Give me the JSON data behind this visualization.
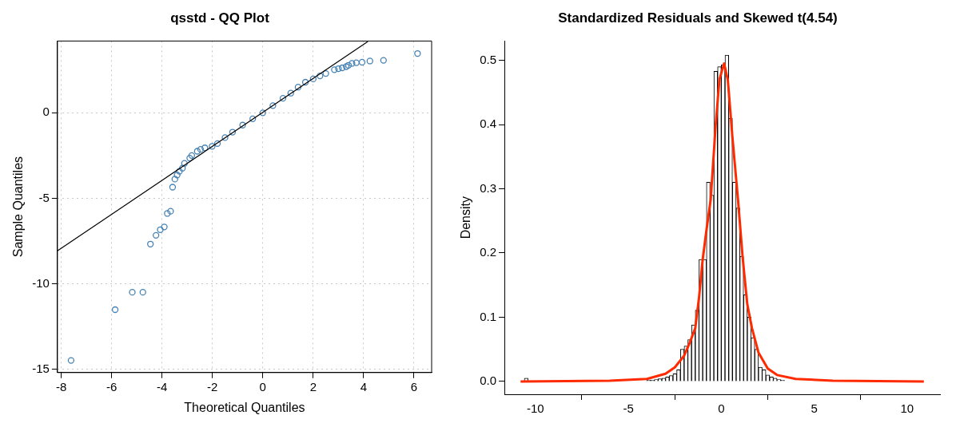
{
  "chart_data": [
    {
      "type": "scatter",
      "title": "qsstd - QQ Plot",
      "xlabel": "Theoretical Quantiles",
      "ylabel": "Sample Quantiles",
      "xlim": [
        -8.15,
        6.7
      ],
      "ylim": [
        -15.2,
        4.2
      ],
      "xticks": [
        -8,
        -6,
        -4,
        -2,
        0,
        2,
        4,
        6
      ],
      "yticks": [
        -15,
        -10,
        -5,
        0
      ],
      "grid": true,
      "legend": false,
      "series": [
        {
          "type": "scatter",
          "marker": "circle",
          "color": "#4682b4",
          "x": [
            -7.61,
            -5.86,
            -5.18,
            -4.76,
            -4.46,
            -4.24,
            -4.07,
            -3.91,
            -3.79,
            -3.66,
            -3.58,
            -3.49,
            -3.4,
            -3.31,
            -3.19,
            -3.11,
            -2.9,
            -2.82,
            -2.6,
            -2.47,
            -2.3,
            -2.01,
            -1.8,
            -1.5,
            -1.2,
            -0.8,
            -0.4,
            0,
            0.4,
            0.8,
            1.11,
            1.4,
            1.69,
            2.0,
            2.27,
            2.5,
            2.84,
            3.0,
            3.15,
            3.31,
            3.4,
            3.54,
            3.71,
            3.94,
            4.25,
            4.79,
            6.14
          ],
          "values": [
            -14.49,
            -11.52,
            -10.5,
            -10.5,
            -7.68,
            -7.17,
            -6.84,
            -6.68,
            -5.89,
            -5.76,
            -4.35,
            -3.88,
            -3.64,
            -3.42,
            -3.24,
            -2.96,
            -2.65,
            -2.5,
            -2.25,
            -2.14,
            -2.05,
            -1.96,
            -1.8,
            -1.45,
            -1.13,
            -0.72,
            -0.35,
            0,
            0.42,
            0.85,
            1.15,
            1.5,
            1.79,
            1.98,
            2.16,
            2.3,
            2.52,
            2.58,
            2.63,
            2.7,
            2.78,
            2.89,
            2.93,
            2.96,
            3.03,
            3.07,
            3.47
          ]
        },
        {
          "type": "line",
          "color": "#000000",
          "x": [
            -8.15,
            4.17
          ],
          "values": [
            -8.08,
            4.17
          ]
        }
      ]
    },
    {
      "type": "histogram",
      "title": "Standardized Residuals and Skewed t(4.54)",
      "ylabel": "Density",
      "xlim": [
        -11.67,
        11.77
      ],
      "ylim": [
        -0.02,
        0.53
      ],
      "xticks": [
        -10,
        -5,
        0,
        5,
        10
      ],
      "yticks": [
        {
          "value": 0,
          "label": "0.0"
        },
        {
          "value": 0.1,
          "label": "0.1"
        },
        {
          "value": 0.2,
          "label": "0.2"
        },
        {
          "value": 0.3,
          "label": "0.3"
        },
        {
          "value": 0.4,
          "label": "0.4"
        },
        {
          "value": 0.5,
          "label": "0.5"
        }
      ],
      "grid": false,
      "legend": false,
      "series": [
        {
          "type": "histogram",
          "color": "#ffffff",
          "bins": [
            -10.8,
            -10.6,
            -10.4,
            -10.2,
            -10,
            -9.8,
            -9.6,
            -9.4,
            -9.2,
            -9,
            -8.8,
            -8.6,
            -8.4,
            -8.2,
            -8,
            -7.8,
            -7.6,
            -7.4,
            -7.2,
            -7,
            -6.8,
            -6.6,
            -6.4,
            -6.2,
            -6,
            -5.8,
            -5.6,
            -5.4,
            -5.2,
            -5,
            -4.8,
            -4.6,
            -4.4,
            -4.2,
            -4,
            -3.8,
            -3.6,
            -3.4,
            -3.2,
            -3,
            -2.8,
            -2.6,
            -2.4,
            -2.2,
            -2,
            -1.8,
            -1.6,
            -1.4,
            -1.2,
            -1,
            -0.8,
            -0.6,
            -0.4,
            -0.2,
            0,
            0.2,
            0.4,
            0.6,
            0.8,
            1,
            1.2,
            1.4,
            1.6,
            1.8,
            2,
            2.2,
            2.4,
            2.6,
            2.8,
            3,
            3.2,
            3.4,
            3.6
          ],
          "values": [
            0,
            0.005,
            0,
            0,
            0,
            0,
            0,
            0,
            0,
            0,
            0,
            0,
            0,
            0,
            0,
            null,
            0,
            0,
            0,
            null,
            0,
            null,
            0,
            0,
            0,
            0.002,
            0,
            0,
            0,
            0,
            0,
            0,
            0,
            0,
            0.002,
            0.002,
            0.003,
            0.004,
            0.005,
            0.007,
            0.009,
            0.012,
            0.018,
            0.05,
            0.055,
            0.065,
            0.088,
            0.111,
            0.19,
            0.19,
            0.31,
            0.29,
            0.483,
            0.49,
            0.493,
            0.508,
            0.41,
            0.31,
            0.27,
            0.195,
            0.135,
            0.1,
            0.068,
            0.05,
            0.022,
            0.018,
            0.01,
            0.007,
            0.005,
            0.003,
            0.002,
            null
          ]
        },
        {
          "type": "line",
          "color": "#ff2a00",
          "x": [
            -10.8,
            -6,
            -4,
            -3,
            -2.5,
            -2,
            -1.7,
            -1.4,
            -1.2,
            -1,
            -0.8,
            -0.57,
            -0.3,
            -0.1,
            0.15,
            0.35,
            0.6,
            0.9,
            1.15,
            1.4,
            1.65,
            2,
            2.5,
            3,
            4,
            6,
            10.9
          ],
          "values": [
            0,
            0.001,
            0.004,
            0.012,
            0.022,
            0.04,
            0.06,
            0.083,
            0.13,
            0.19,
            0.235,
            0.283,
            0.4,
            0.47,
            0.495,
            0.47,
            0.38,
            0.283,
            0.193,
            0.12,
            0.083,
            0.045,
            0.02,
            0.01,
            0.004,
            0.001,
            0
          ]
        }
      ]
    }
  ]
}
